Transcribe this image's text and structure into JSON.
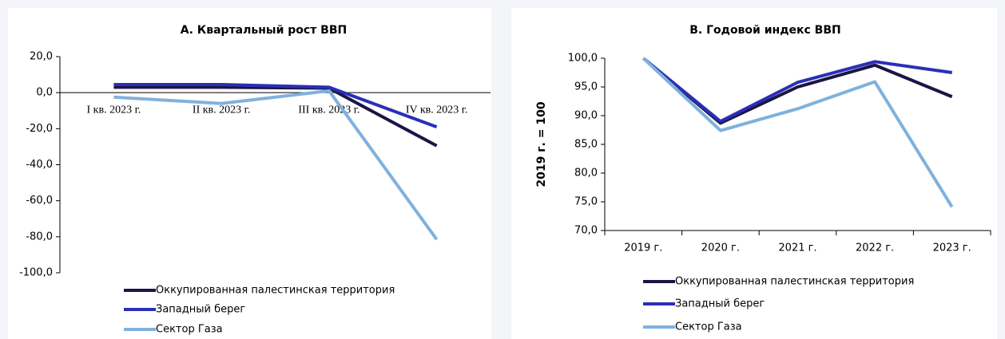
{
  "chart_data": [
    {
      "type": "line",
      "title": "А. Квартальный рост ВВП",
      "categories": [
        "I кв. 2023 г.",
        "II кв. 2023 г.",
        "III кв. 2023 г.",
        "IV кв. 2023 г."
      ],
      "series": [
        {
          "name": "Оккупированная палестинская территория",
          "color": "#1c1446",
          "values": [
            3,
            3,
            2.5,
            -29.5
          ]
        },
        {
          "name": "Западный берег",
          "color": "#2a2fb5",
          "values": [
            4.5,
            4.5,
            3,
            -19
          ]
        },
        {
          "name": "Сектор Газа",
          "color": "#80b1dc",
          "values": [
            -2.5,
            -6,
            1,
            -81.5
          ]
        }
      ],
      "ylim": [
        -100,
        20
      ],
      "yticks": [
        {
          "value": -100,
          "label": "-100,0"
        },
        {
          "value": -80,
          "label": "-80,0"
        },
        {
          "value": -60,
          "label": "-60,0"
        },
        {
          "value": -40,
          "label": "-40,0"
        },
        {
          "value": -20,
          "label": "-20,0"
        },
        {
          "value": 0,
          "label": "0,0"
        },
        {
          "value": 20,
          "label": "20,0"
        }
      ],
      "grid": false
    },
    {
      "type": "line",
      "title": "В. Годовой индекс ВВП",
      "y_label": "2019 г. = 100",
      "categories": [
        "2019 г.",
        "2020 г.",
        "2021 г.",
        "2022 г.",
        "2023 г."
      ],
      "series": [
        {
          "name": "Оккупированная палестинская территория",
          "color": "#1c1446",
          "values": [
            100,
            88.7,
            95,
            98.8,
            93.3
          ]
        },
        {
          "name": "Западный берег",
          "color": "#2a2fb5",
          "values": [
            100,
            89,
            95.8,
            99.4,
            97.5
          ]
        },
        {
          "name": "Сектор Газа",
          "color": "#80b1dc",
          "values": [
            100,
            87.4,
            91.2,
            95.9,
            74.1
          ]
        }
      ],
      "ylim": [
        70,
        100
      ],
      "yticks": [
        {
          "value": 70,
          "label": "70,0"
        },
        {
          "value": 75,
          "label": "75,0"
        },
        {
          "value": 80,
          "label": "80,0"
        },
        {
          "value": 85,
          "label": "85,0"
        },
        {
          "value": 90,
          "label": "90,0"
        },
        {
          "value": 95,
          "label": "95,0"
        },
        {
          "value": 100,
          "label": "100,0"
        }
      ],
      "grid": false
    }
  ]
}
